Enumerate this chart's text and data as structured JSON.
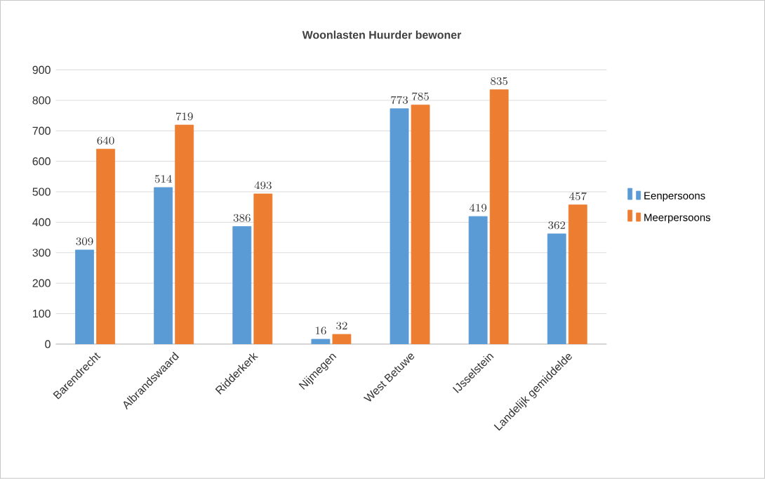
{
  "chart_data": {
    "type": "bar",
    "title": "Woonlasten Huurder bewoner",
    "categories": [
      "Barendrecht",
      "Albrandswaard",
      "Ridderkerk",
      "Nijmegen",
      "West Betuwe",
      "IJsselstein",
      "Landelijk gemiddelde"
    ],
    "series": [
      {
        "name": "Eenpersoons",
        "color": "#5b9bd5",
        "values": [
          309,
          514,
          386,
          16,
          773,
          419,
          362
        ]
      },
      {
        "name": "Meerpersoons",
        "color": "#ed7d31",
        "values": [
          640,
          719,
          493,
          32,
          785,
          835,
          457
        ]
      }
    ],
    "ylim": [
      0,
      900
    ],
    "yticks": [
      0,
      100,
      200,
      300,
      400,
      500,
      600,
      700,
      800,
      900
    ],
    "grid": "y",
    "legend": "right",
    "data_labels": true
  }
}
